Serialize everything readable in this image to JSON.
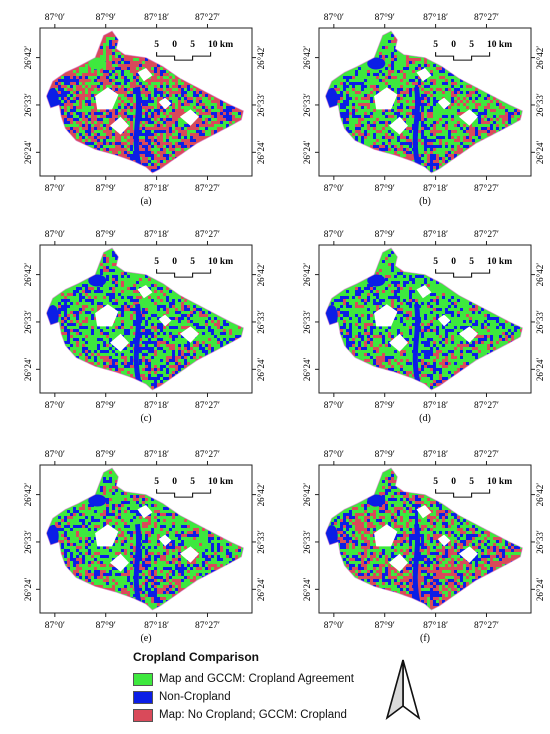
{
  "panels": [
    {
      "label": "(a)",
      "mix": [
        0.35,
        0.22,
        0.43
      ]
    },
    {
      "label": "(b)",
      "mix": [
        0.58,
        0.22,
        0.2
      ]
    },
    {
      "label": "(c)",
      "mix": [
        0.62,
        0.24,
        0.14
      ]
    },
    {
      "label": "(d)",
      "mix": [
        0.66,
        0.24,
        0.1
      ]
    },
    {
      "label": "(e)",
      "mix": [
        0.6,
        0.22,
        0.18
      ]
    },
    {
      "label": "(f)",
      "mix": [
        0.45,
        0.22,
        0.33
      ]
    }
  ],
  "axes": {
    "top_ticks": [
      "87°0′",
      "87°9′",
      "87°18′",
      "87°27′"
    ],
    "bottom_ticks": [
      "87°0′",
      "87°9′",
      "87°18′",
      "87°27′"
    ],
    "left_ticks": [
      "26°42′",
      "26°33′",
      "26°24′"
    ],
    "right_ticks": [
      "26°42′",
      "26°33′",
      "26°24′"
    ]
  },
  "scale_bar": {
    "labels": [
      "5",
      "0",
      "5",
      "10 km"
    ]
  },
  "legend": {
    "title": "Cropland Comparison",
    "items": [
      {
        "label": "Map and GCCM: Cropland Agreement",
        "color": "#3ee83e"
      },
      {
        "label": "Non-Cropland",
        "color": "#0b1ee6"
      },
      {
        "label": "Map: No Cropland; GCCM: Cropland",
        "color": "#d94a5a"
      }
    ]
  },
  "north_arrow": {
    "icon": "north-arrow-icon"
  },
  "colors": {
    "agreement": "#3ee83e",
    "noncrop": "#0b1ee6",
    "disagree": "#d94a5a"
  }
}
